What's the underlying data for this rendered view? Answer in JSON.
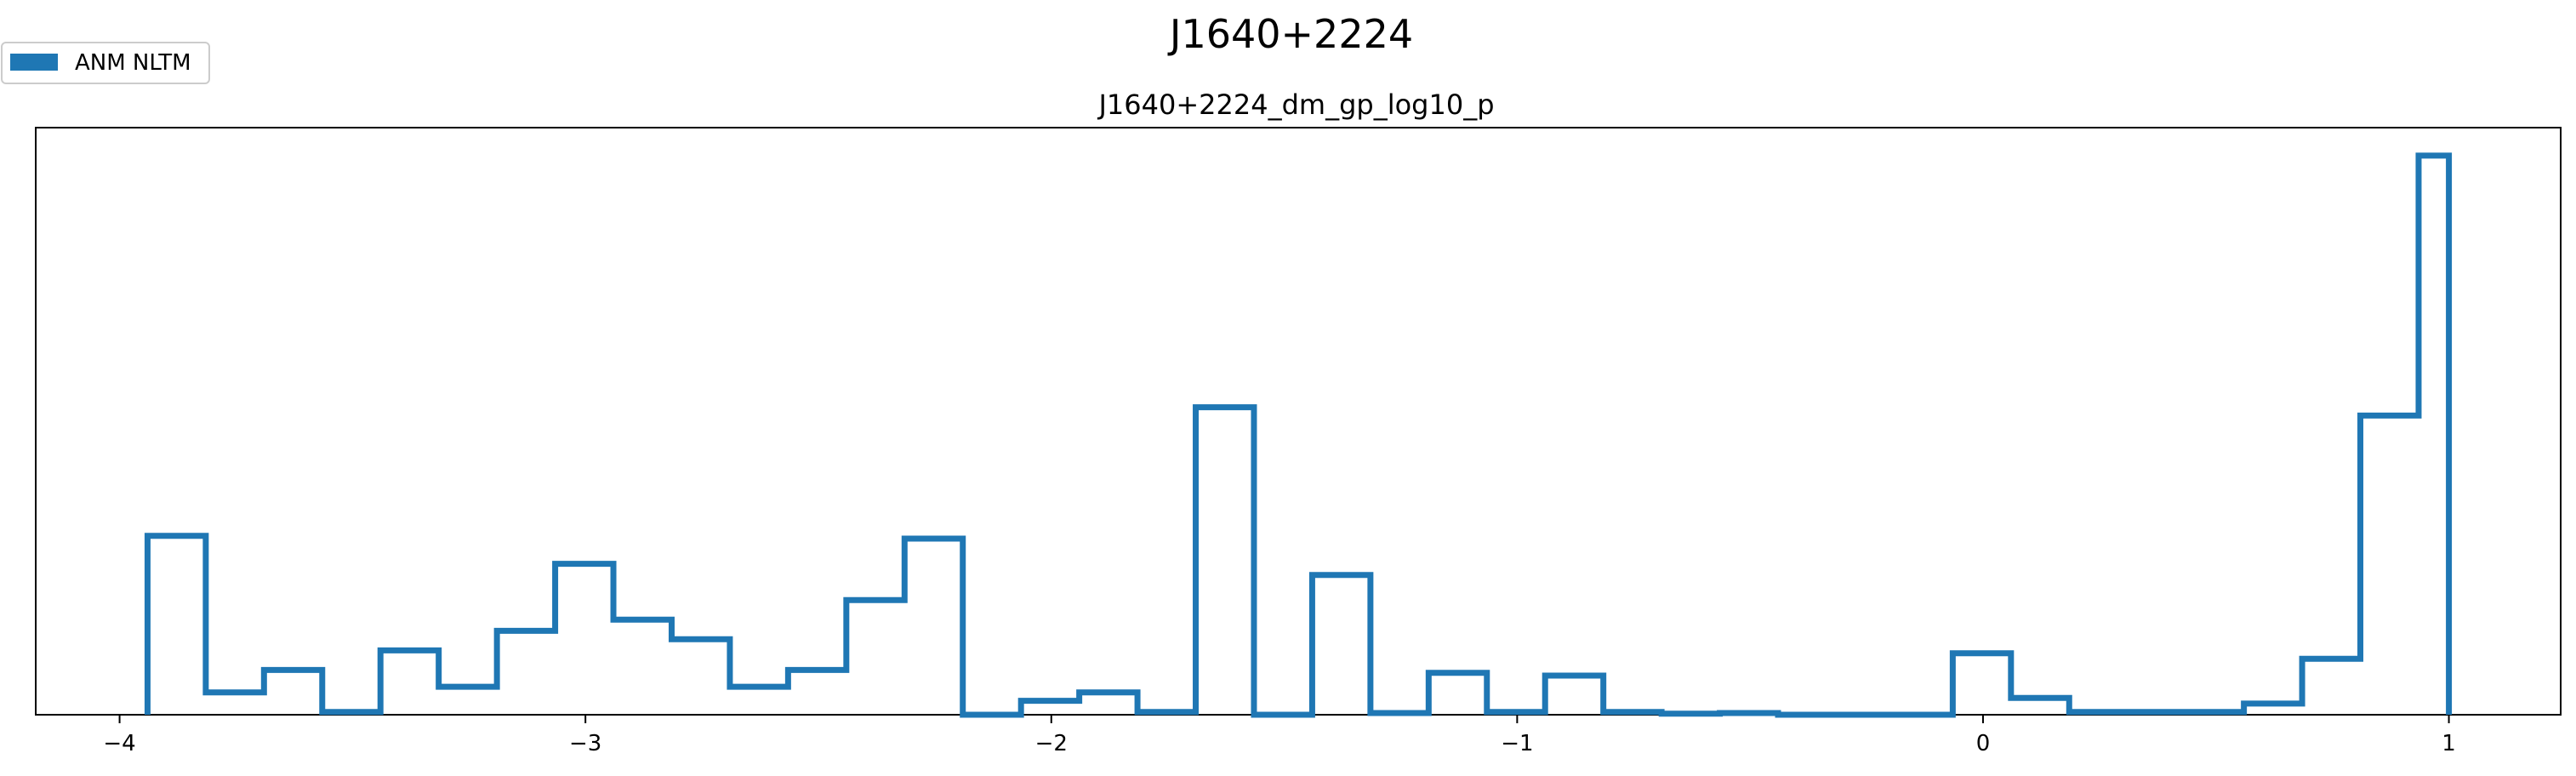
{
  "chart_data": {
    "type": "histogram",
    "suptitle": "J1640+2224",
    "title": "J1640+2224_dm_gp_log10_p",
    "xlabel": "",
    "ylabel": "",
    "xlim": [
      -4.18,
      1.24
    ],
    "ylim": [
      0,
      1.05
    ],
    "x_ticks": [
      {
        "value": -4,
        "label": "−4"
      },
      {
        "value": -3,
        "label": "−3"
      },
      {
        "value": -2,
        "label": "−2"
      },
      {
        "value": -1,
        "label": "−1"
      },
      {
        "value": 0,
        "label": "0"
      },
      {
        "value": 1,
        "label": "1"
      }
    ],
    "y_ticks_visible": false,
    "grid": false,
    "legend": {
      "placement": "top-left",
      "entries": [
        {
          "name": "ANM NLTM",
          "color": "#1f77b4"
        }
      ]
    },
    "series": [
      {
        "name": "ANM NLTM",
        "color": "#1f77b4",
        "style": "step",
        "bin_edges": [
          -3.94,
          -3.815,
          -3.69,
          -3.565,
          -3.44,
          -3.315,
          -3.19,
          -3.065,
          -2.94,
          -2.815,
          -2.69,
          -2.565,
          -2.44,
          -2.315,
          -2.19,
          -2.065,
          -1.94,
          -1.815,
          -1.69,
          -1.565,
          -1.44,
          -1.315,
          -1.19,
          -1.065,
          -0.94,
          -0.815,
          -0.69,
          -0.565,
          -0.44,
          -0.315,
          -0.19,
          -0.065,
          0.06,
          0.185,
          0.31,
          0.435,
          0.56,
          0.685,
          0.81,
          0.935,
          1.0
        ],
        "counts": [
          0.32,
          0.04,
          0.08,
          0.005,
          0.115,
          0.05,
          0.15,
          0.27,
          0.17,
          0.135,
          0.05,
          0.08,
          0.205,
          0.315,
          0.0,
          0.025,
          0.04,
          0.005,
          0.55,
          0.0,
          0.25,
          0.003,
          0.075,
          0.005,
          0.07,
          0.005,
          0.002,
          0.003,
          0.0,
          0.0,
          0.0,
          0.11,
          0.03,
          0.005,
          0.005,
          0.005,
          0.02,
          0.1,
          0.535,
          1.0
        ]
      }
    ]
  }
}
